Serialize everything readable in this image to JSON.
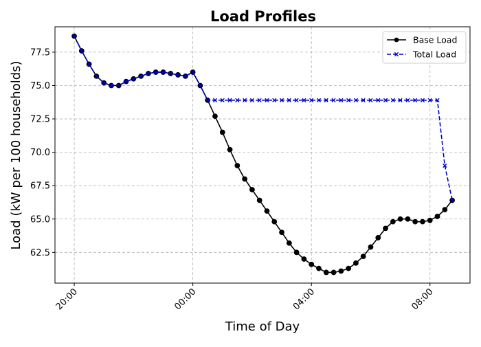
{
  "chart_data": {
    "type": "line",
    "title": "Load Profiles",
    "xlabel": "Time of Day",
    "ylabel": "Load (kW  per 100 households)",
    "x_tick_labels": [
      "20:00",
      "00:00",
      "04:00",
      "08:00"
    ],
    "x_tick_hours": [
      0,
      4,
      8,
      12
    ],
    "y_tick_labels": [
      "62.5",
      "65.0",
      "67.5",
      "70.0",
      "72.5",
      "75.0",
      "77.5"
    ],
    "y_tick_values": [
      62.5,
      65.0,
      67.5,
      70.0,
      72.5,
      75.0,
      77.5
    ],
    "xlim_hours": [
      -0.65,
      13.35
    ],
    "ylim": [
      60.2,
      79.4
    ],
    "grid": true,
    "legend_position": "top-right",
    "x_hours": [
      0,
      0.25,
      0.5,
      0.75,
      1,
      1.25,
      1.5,
      1.75,
      2,
      2.25,
      2.5,
      2.75,
      3,
      3.25,
      3.5,
      3.75,
      4,
      4.25,
      4.5,
      4.75,
      5,
      5.25,
      5.5,
      5.75,
      6,
      6.25,
      6.5,
      6.75,
      7,
      7.25,
      7.5,
      7.75,
      8,
      8.25,
      8.5,
      8.75,
      9,
      9.25,
      9.5,
      9.75,
      10,
      10.25,
      10.5,
      10.75,
      11,
      11.25,
      11.5,
      11.75,
      12,
      12.25,
      12.5,
      12.75
    ],
    "series": [
      {
        "name": "Base Load",
        "color": "#000000",
        "marker": "circle",
        "linestyle": "solid",
        "values": [
          78.7,
          77.6,
          76.6,
          75.7,
          75.2,
          75.0,
          75.0,
          75.3,
          75.5,
          75.7,
          75.9,
          76.0,
          76.0,
          75.9,
          75.8,
          75.7,
          76.0,
          75.0,
          73.9,
          72.7,
          71.5,
          70.2,
          69.0,
          68.0,
          67.2,
          66.4,
          65.6,
          64.8,
          64.0,
          63.2,
          62.5,
          62.0,
          61.6,
          61.3,
          61.0,
          61.0,
          61.1,
          61.3,
          61.7,
          62.2,
          62.9,
          63.6,
          64.3,
          64.8,
          65.0,
          65.0,
          64.8,
          64.8,
          64.9,
          65.2,
          65.7,
          66.4
        ]
      },
      {
        "name": "Total Load",
        "color": "#0000cd",
        "marker": "x",
        "linestyle": "dashed",
        "values": [
          78.7,
          77.6,
          76.6,
          75.7,
          75.2,
          75.0,
          75.0,
          75.3,
          75.5,
          75.7,
          75.9,
          76.0,
          76.0,
          75.9,
          75.8,
          75.7,
          76.0,
          75.0,
          73.9,
          73.9,
          73.9,
          73.9,
          73.9,
          73.9,
          73.9,
          73.9,
          73.9,
          73.9,
          73.9,
          73.9,
          73.9,
          73.9,
          73.9,
          73.9,
          73.9,
          73.9,
          73.9,
          73.9,
          73.9,
          73.9,
          73.9,
          73.9,
          73.9,
          73.9,
          73.9,
          73.9,
          73.9,
          73.9,
          73.9,
          73.9,
          69.0,
          66.4
        ]
      }
    ]
  }
}
